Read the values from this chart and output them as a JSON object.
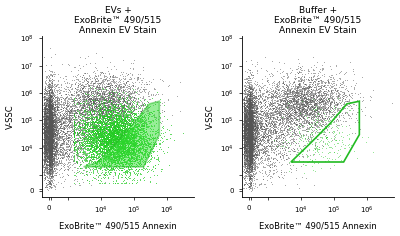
{
  "title_left": "EVs +\nExoBrite™ 490/515\nAnnexin EV Stain",
  "title_right": "Buffer +\nExoBrite™ 490/515\nAnnexin EV Stain",
  "xlabel": "ExoBrite™ 490/515 Annexin",
  "ylabel": "V-SSC",
  "bg_color": "#ffffff",
  "gray_dot_color": "#555555",
  "green_dot_color": "#22cc22",
  "gate_color": "#22bb22",
  "gate_lw": 1.2,
  "gate_left_x": [
    3000,
    8000,
    30000,
    100000,
    300000,
    600000,
    600000,
    200000,
    3000
  ],
  "gate_left_y": [
    2000,
    3000,
    15000,
    80000,
    400000,
    500000,
    30000,
    2000,
    2000
  ],
  "gate_right_x": [
    5000,
    20000,
    80000,
    250000,
    600000,
    600000,
    200000,
    5000
  ],
  "gate_right_y": [
    3000,
    15000,
    80000,
    400000,
    500000,
    30000,
    3000,
    3000
  ],
  "title_fontsize": 6.5,
  "label_fontsize": 6.0,
  "tick_fontsize": 5.0,
  "seed": 12
}
